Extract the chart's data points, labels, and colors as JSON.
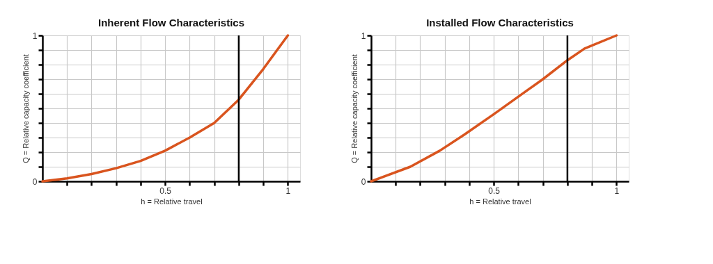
{
  "chart_data": [
    {
      "type": "line",
      "title": "Inherent Flow Characteristics",
      "xlabel": "h = Relative travel",
      "ylabel": "Q = Relative capacity coefficient",
      "x": [
        0,
        0.1,
        0.2,
        0.3,
        0.4,
        0.5,
        0.6,
        0.7,
        0.8,
        0.9,
        1
      ],
      "series": [
        {
          "color": "#d9541e",
          "values": [
            0,
            0.02,
            0.05,
            0.09,
            0.14,
            0.21,
            0.3,
            0.4,
            0.56,
            0.77,
            1
          ]
        }
      ],
      "xlim": [
        0,
        1.05
      ],
      "ylim": [
        0,
        1
      ],
      "xticks": [
        {
          "value": 0.1,
          "label": null
        },
        {
          "value": 0.2,
          "label": null
        },
        {
          "value": 0.3,
          "label": null
        },
        {
          "value": 0.4,
          "label": null
        },
        0.5,
        {
          "value": 0.6,
          "label": null
        },
        {
          "value": 0.7,
          "label": null
        },
        {
          "value": 0.8,
          "label": null
        },
        {
          "value": 0.9,
          "label": null
        },
        1
      ],
      "yticks": [
        0,
        {
          "value": 0.1,
          "label": null
        },
        {
          "value": 0.2,
          "label": null
        },
        {
          "value": 0.3,
          "label": null
        },
        {
          "value": 0.4,
          "label": null
        },
        {
          "value": 0.5,
          "label": null
        },
        {
          "value": 0.6,
          "label": null
        },
        {
          "value": 0.7,
          "label": null
        },
        {
          "value": 0.8,
          "label": null
        },
        {
          "value": 0.9,
          "label": null
        },
        1
      ],
      "ref_lines": [
        {
          "axis": "x",
          "value": 0.8,
          "color": "#000000"
        }
      ],
      "grid": true
    },
    {
      "type": "line",
      "title": "Installed Flow Characteristics",
      "xlabel": "h = Relative travel",
      "ylabel": "Q = Relative capacity coefficient",
      "x": [
        0,
        0.16,
        0.28,
        0.38,
        0.5,
        0.6,
        0.7,
        0.8,
        0.87,
        1
      ],
      "series": [
        {
          "color": "#d9541e",
          "values": [
            0,
            0.1,
            0.21,
            0.32,
            0.46,
            0.58,
            0.7,
            0.83,
            0.91,
            1
          ]
        }
      ],
      "xlim": [
        0,
        1.05
      ],
      "ylim": [
        0,
        1
      ],
      "xticks": [
        {
          "value": 0.1,
          "label": null
        },
        {
          "value": 0.2,
          "label": null
        },
        {
          "value": 0.3,
          "label": null
        },
        {
          "value": 0.4,
          "label": null
        },
        0.5,
        {
          "value": 0.6,
          "label": null
        },
        {
          "value": 0.7,
          "label": null
        },
        {
          "value": 0.8,
          "label": null
        },
        {
          "value": 0.9,
          "label": null
        },
        1
      ],
      "yticks": [
        0,
        {
          "value": 0.1,
          "label": null
        },
        {
          "value": 0.2,
          "label": null
        },
        {
          "value": 0.3,
          "label": null
        },
        {
          "value": 0.4,
          "label": null
        },
        {
          "value": 0.5,
          "label": null
        },
        {
          "value": 0.6,
          "label": null
        },
        {
          "value": 0.7,
          "label": null
        },
        {
          "value": 0.8,
          "label": null
        },
        {
          "value": 0.9,
          "label": null
        },
        1
      ],
      "ref_lines": [
        {
          "axis": "x",
          "value": 0.8,
          "color": "#000000"
        }
      ],
      "grid": true
    }
  ]
}
